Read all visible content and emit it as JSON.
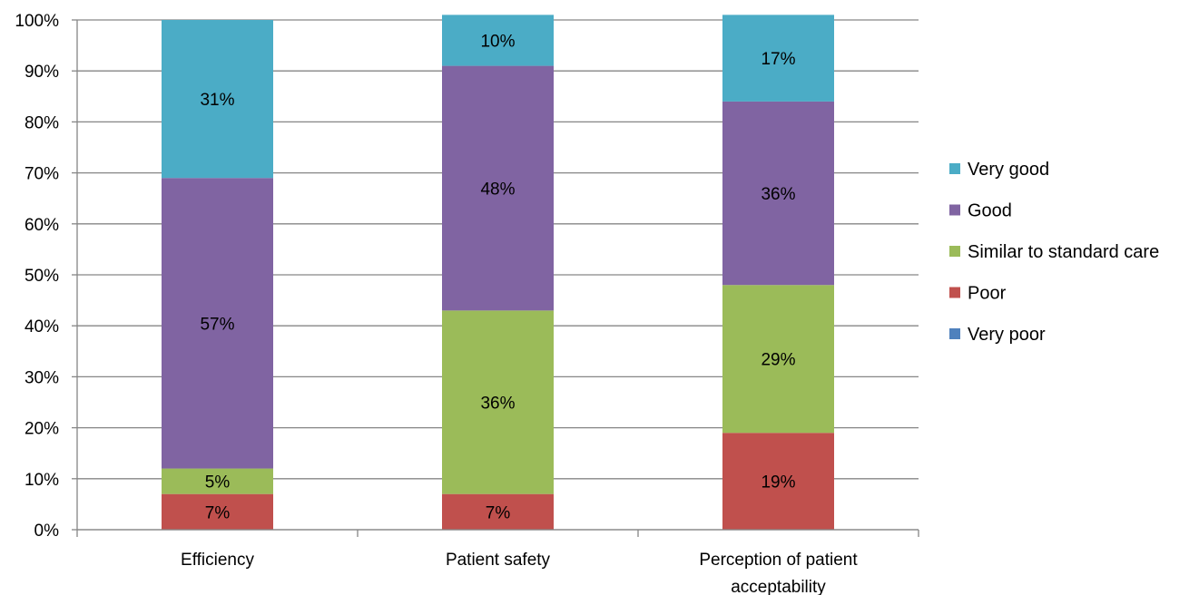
{
  "chart_data": {
    "type": "bar",
    "stacked": true,
    "orientation": "vertical",
    "categories": [
      "Efficiency",
      "Patient safety",
      "Perception of patient acceptability"
    ],
    "category_label_lines": [
      [
        "Efficiency"
      ],
      [
        "Patient safety"
      ],
      [
        "Perception of patient",
        "acceptability"
      ]
    ],
    "series": [
      {
        "name": "Very poor",
        "color": "#4F81BD",
        "values": [
          0,
          0,
          0
        ],
        "labels": [
          "",
          "",
          ""
        ]
      },
      {
        "name": "Poor",
        "color": "#C0504D",
        "values": [
          7,
          7,
          19
        ],
        "labels": [
          "7%",
          "7%",
          "19%"
        ]
      },
      {
        "name": "Similar to standard care",
        "color": "#9BBB59",
        "values": [
          5,
          36,
          29
        ],
        "labels": [
          "5%",
          "36%",
          "29%"
        ]
      },
      {
        "name": "Good",
        "color": "#8064A2",
        "values": [
          57,
          48,
          36
        ],
        "labels": [
          "57%",
          "48%",
          "36%"
        ]
      },
      {
        "name": "Very good",
        "color": "#4BACC6",
        "values": [
          31,
          10,
          17
        ],
        "labels": [
          "31%",
          "10%",
          "17%"
        ]
      }
    ],
    "legend_order": [
      "Very good",
      "Good",
      "Similar to standard care",
      "Poor",
      "Very poor"
    ],
    "legend_position": "right",
    "ylim": [
      0,
      100
    ],
    "y_ticks": [
      "0%",
      "10%",
      "20%",
      "30%",
      "40%",
      "50%",
      "60%",
      "70%",
      "80%",
      "90%",
      "100%"
    ],
    "grid": true,
    "gridline_color": "#868686",
    "title": "",
    "xlabel": "",
    "ylabel": ""
  }
}
